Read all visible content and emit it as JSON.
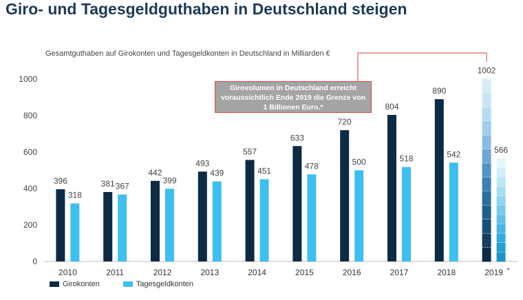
{
  "header": {
    "title": "Giro- und Tagesgeldguthaben in Deutschland steigen"
  },
  "chart_data": {
    "type": "bar",
    "subtitle": "Gesamtguthaben auf Girokonten und Tagesgeldkonten in Deutschland in Milliarden €",
    "categories": [
      "2010",
      "2011",
      "2012",
      "2013",
      "2014",
      "2015",
      "2016",
      "2017",
      "2018",
      "2019"
    ],
    "category_notes": [
      "",
      "",
      "",
      "",
      "",
      "",
      "",
      "",
      "",
      "*"
    ],
    "series": [
      {
        "name": "Girokonten",
        "color": "#0d2b45",
        "values": [
          396,
          381,
          442,
          493,
          557,
          633,
          720,
          804,
          890,
          1002
        ]
      },
      {
        "name": "Tagesgeldkonten",
        "color": "#3dbfef",
        "values": [
          318,
          367,
          399,
          439,
          451,
          478,
          500,
          518,
          542,
          566
        ]
      }
    ],
    "forecast_category": "2019",
    "ylim": [
      0,
      1000
    ],
    "yticks": [
      0,
      200,
      400,
      600,
      800,
      1000
    ],
    "grid": false,
    "legend_position": "bottom-left",
    "annotation": {
      "lines": [
        "Girovolumen in Deutschland erreicht",
        "voraussichtlich Ende 2019 die Grenze von",
        "1 Billionen Euro.*"
      ],
      "border_color": "#d9443c",
      "background": "#a4a4a4"
    }
  }
}
